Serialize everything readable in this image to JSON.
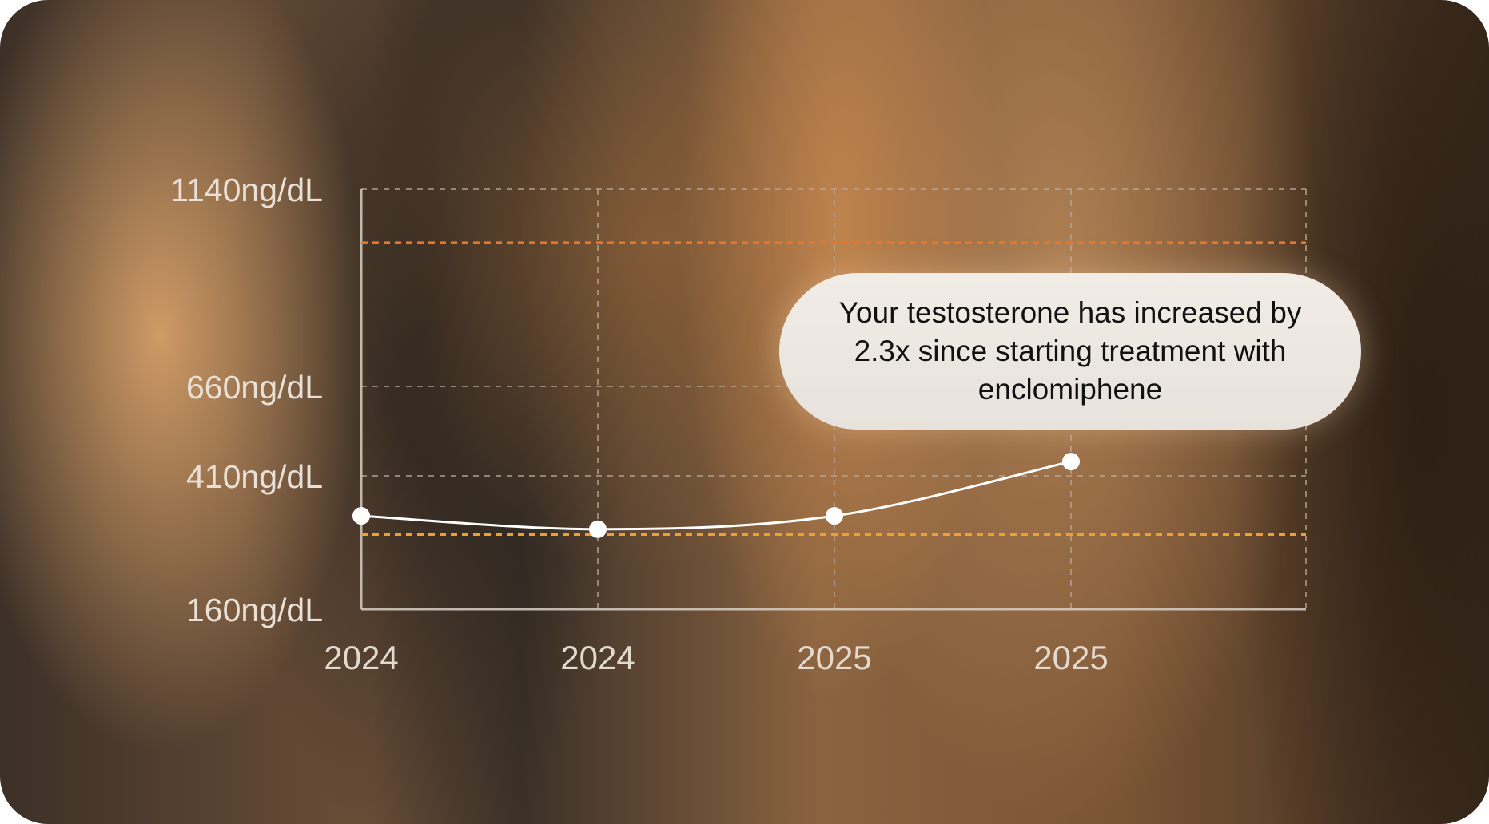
{
  "chart_data": {
    "type": "line",
    "x": [
      "2024",
      "2024",
      "2025",
      "2025"
    ],
    "x_tick_labels": [
      "2024",
      "2024",
      "2025",
      "2025"
    ],
    "y_tick_labels": [
      "1140ng/dL",
      "660ng/dL",
      "410ng/dL",
      "160ng/dL"
    ],
    "y_ticks": [
      1140,
      660,
      410,
      160
    ],
    "series": [
      {
        "values": [
          335,
          310,
          335,
          450
        ]
      }
    ],
    "reference_lines": [
      {
        "value": 1010,
        "color": "#e8772e"
      },
      {
        "value": 300,
        "color": "#f0a030"
      }
    ],
    "grid": true,
    "annotation": "Your testosterone has increased by 2.3x since starting treatment with enclomiphene",
    "colors": {
      "line": "#ffffff",
      "grid": "#b8a89a",
      "axis": "#d8cfc6"
    }
  }
}
